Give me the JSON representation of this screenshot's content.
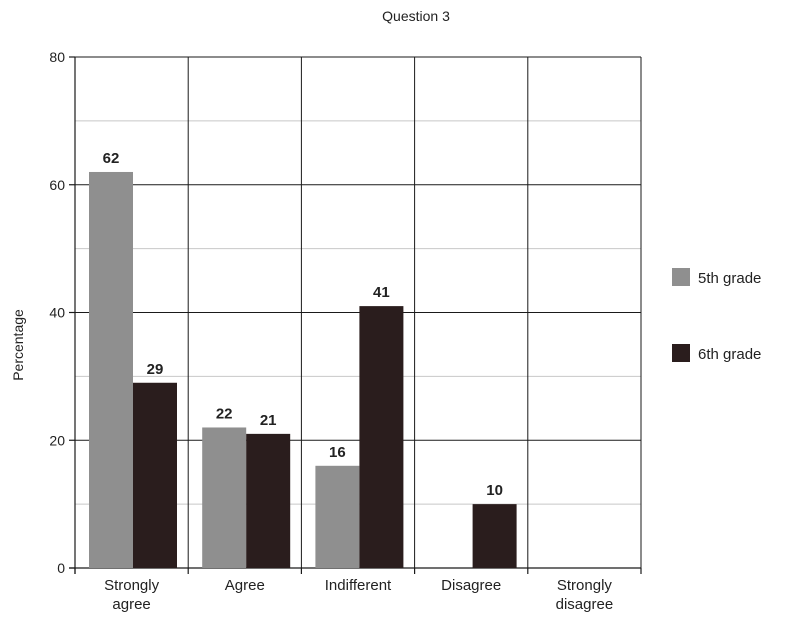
{
  "chart_data": {
    "type": "bar",
    "title": "Question 3",
    "xlabel": "",
    "ylabel": "Percentage",
    "ylim": [
      0,
      80
    ],
    "yticks": [
      0,
      20,
      40,
      60,
      80
    ],
    "categories": [
      [
        "Strongly",
        "agree"
      ],
      [
        "Agree"
      ],
      [
        "Indifferent"
      ],
      [
        "Disagree"
      ],
      [
        "Strongly",
        "disagree"
      ]
    ],
    "series": [
      {
        "name": "5th grade",
        "color": "#8f8f8f",
        "values": [
          62,
          22,
          16,
          null,
          null
        ]
      },
      {
        "name": "6th grade",
        "color": "#2a1d1d",
        "values": [
          29,
          21,
          41,
          10,
          null
        ]
      }
    ],
    "grid": true,
    "legend_position": "right"
  }
}
